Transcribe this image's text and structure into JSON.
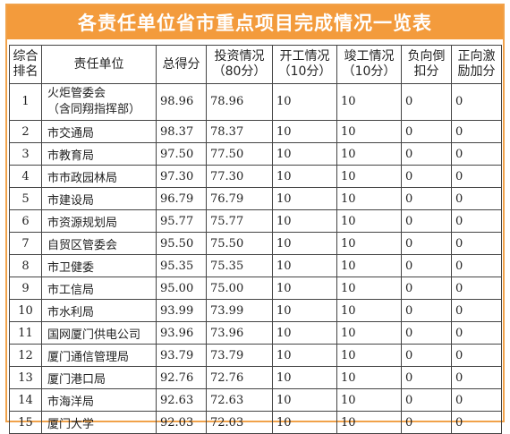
{
  "title": "各责任单位省市重点项目完成情况一览表",
  "headers": {
    "rank": [
      "综合",
      "排名"
    ],
    "unit": "责任单位",
    "total": "总得分",
    "invest": [
      "投资情况",
      "（80分）"
    ],
    "start": [
      "开工情况",
      "（10分）"
    ],
    "complete": [
      "竣工情况",
      "（10分）"
    ],
    "negative": [
      "负向倒",
      "扣分"
    ],
    "positive": [
      "正向激",
      "励加分"
    ]
  },
  "rows": [
    {
      "rank": "1",
      "unit": "火炬管委会",
      "unit_note": "（含同翔指挥部）",
      "total": "98.96",
      "invest": "78.96",
      "start": "10",
      "complete": "10",
      "negative": "0",
      "positive": "0"
    },
    {
      "rank": "2",
      "unit": "市交通局",
      "total": "98.37",
      "invest": "78.37",
      "start": "10",
      "complete": "10",
      "negative": "0",
      "positive": "0"
    },
    {
      "rank": "3",
      "unit": "市教育局",
      "total": "97.50",
      "invest": "77.50",
      "start": "10",
      "complete": "10",
      "negative": "0",
      "positive": "0"
    },
    {
      "rank": "4",
      "unit": "市市政园林局",
      "total": "97.30",
      "invest": "77.30",
      "start": "10",
      "complete": "10",
      "negative": "0",
      "positive": "0"
    },
    {
      "rank": "5",
      "unit": "市建设局",
      "total": "96.79",
      "invest": "76.79",
      "start": "10",
      "complete": "10",
      "negative": "0",
      "positive": "0"
    },
    {
      "rank": "6",
      "unit": "市资源规划局",
      "total": "95.77",
      "invest": "75.77",
      "start": "10",
      "complete": "10",
      "negative": "0",
      "positive": "0"
    },
    {
      "rank": "7",
      "unit": "自贸区管委会",
      "total": "95.50",
      "invest": "75.50",
      "start": "10",
      "complete": "10",
      "negative": "0",
      "positive": "0"
    },
    {
      "rank": "8",
      "unit": "市卫健委",
      "total": "95.35",
      "invest": "75.35",
      "start": "10",
      "complete": "10",
      "negative": "0",
      "positive": "0"
    },
    {
      "rank": "9",
      "unit": "市工信局",
      "total": "95.00",
      "invest": "75.00",
      "start": "10",
      "complete": "10",
      "negative": "0",
      "positive": "0"
    },
    {
      "rank": "10",
      "unit": "市水利局",
      "total": "93.99",
      "invest": "73.99",
      "start": "10",
      "complete": "10",
      "negative": "0",
      "positive": "0"
    },
    {
      "rank": "11",
      "unit": "国网厦门供电公司",
      "total": "93.96",
      "invest": "73.96",
      "start": "10",
      "complete": "10",
      "negative": "0",
      "positive": "0"
    },
    {
      "rank": "12",
      "unit": "厦门通信管理局",
      "total": "93.79",
      "invest": "73.79",
      "start": "10",
      "complete": "10",
      "negative": "0",
      "positive": "0"
    },
    {
      "rank": "13",
      "unit": "厦门港口局",
      "total": "92.76",
      "invest": "72.76",
      "start": "10",
      "complete": "10",
      "negative": "0",
      "positive": "0"
    },
    {
      "rank": "14",
      "unit": "市海洋局",
      "total": "92.63",
      "invest": "72.63",
      "start": "10",
      "complete": "10",
      "negative": "0",
      "positive": "0"
    },
    {
      "rank": "15",
      "unit": "厦门大学",
      "total": "92.03",
      "invest": "72.03",
      "start": "10",
      "complete": "10",
      "negative": "0",
      "positive": "0"
    }
  ]
}
